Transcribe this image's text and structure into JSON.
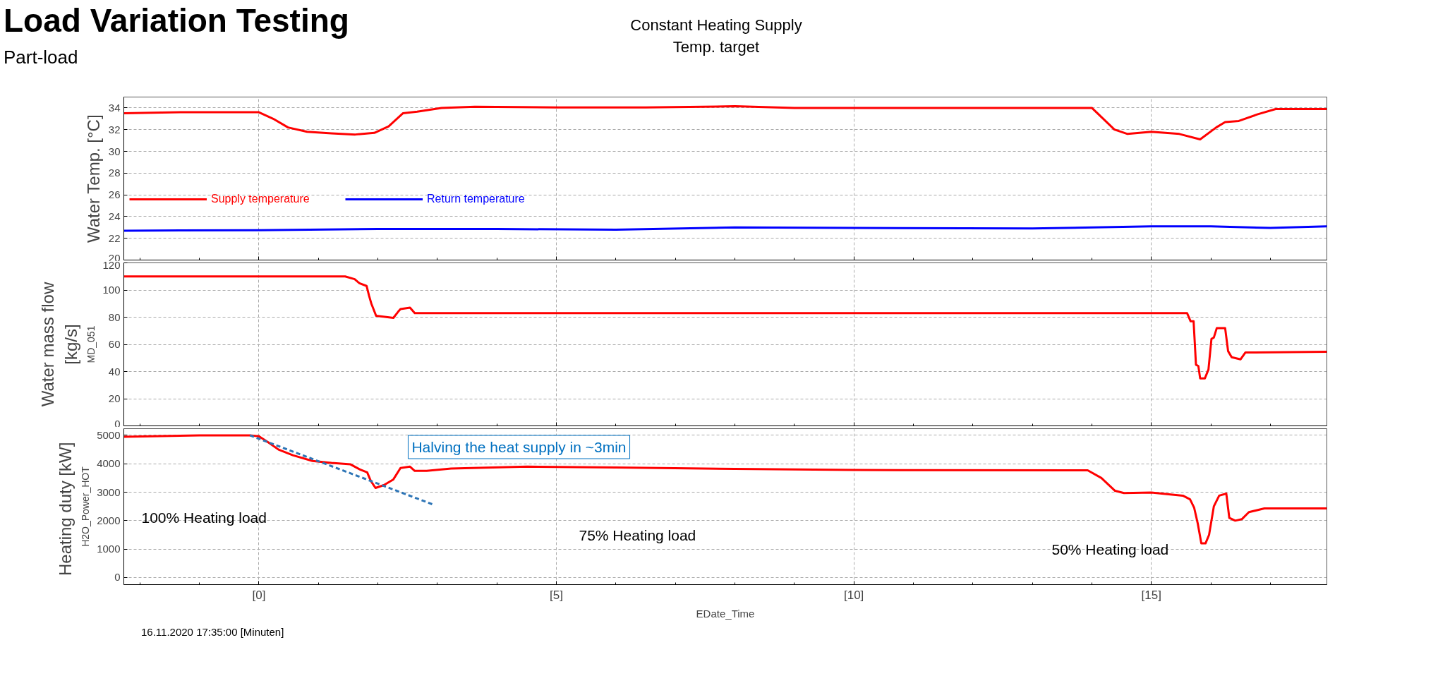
{
  "chart_data": [
    {
      "type": "line",
      "title": "Load Variation Testing",
      "subtitle": "Part-load",
      "ylabel": "Water Temp. [°C]",
      "xlim": [
        -2.27,
        17.95
      ],
      "xticks": [
        {
          "value": 0,
          "label": "[0]"
        },
        {
          "value": 5,
          "label": "[5]"
        },
        {
          "value": 10,
          "label": "[10]"
        },
        {
          "value": 15,
          "label": "[15]"
        }
      ],
      "ylim": [
        20,
        35
      ],
      "yticks": [
        20,
        22,
        24,
        26,
        28,
        30,
        32,
        34
      ],
      "tick_labels": "y",
      "grid": true,
      "legend": "left",
      "annotations": [
        "Constant Heating Supply Temp. target"
      ],
      "series": [
        {
          "name": "Supply temperature",
          "color": "#ff0000",
          "x": [
            -2.27,
            -1.3,
            -1,
            0,
            0.24,
            0.49,
            0.81,
            1.22,
            1.62,
            1.94,
            2.18,
            2.42,
            2.66,
            3.07,
            3.63,
            5,
            6.5,
            8.0,
            9,
            11,
            13,
            14.0,
            14.38,
            14.6,
            15.0,
            15.47,
            15.82,
            16.09,
            16.24,
            16.47,
            16.78,
            17.09,
            17.95
          ],
          "values": [
            33.5,
            33.6,
            33.6,
            33.6,
            33.0,
            32.2,
            31.8,
            31.65,
            31.55,
            31.7,
            32.3,
            33.5,
            33.65,
            34.0,
            34.1,
            34.05,
            34.05,
            34.15,
            34.0,
            34.0,
            34.0,
            34.0,
            32.0,
            31.6,
            31.8,
            31.6,
            31.1,
            32.2,
            32.7,
            32.8,
            33.4,
            33.9,
            33.9
          ]
        },
        {
          "name": "Return temperature",
          "color": "#0000ff",
          "x": [
            -2.27,
            0,
            2,
            4,
            6,
            8,
            10,
            13,
            15,
            16,
            17,
            17.95
          ],
          "values": [
            22.7,
            22.75,
            22.85,
            22.85,
            22.8,
            23.0,
            22.95,
            22.9,
            23.1,
            23.1,
            22.95,
            23.1
          ]
        }
      ]
    },
    {
      "type": "line",
      "ylabel": "Water mass flow [kg/s]",
      "annotations": [
        "MD_051"
      ],
      "xlim": [
        -2.27,
        17.95
      ],
      "xticks": [
        {
          "value": 0,
          "label": "[0]"
        },
        {
          "value": 5,
          "label": "[5]"
        },
        {
          "value": 10,
          "label": "[10]"
        },
        {
          "value": 15,
          "label": "[15]"
        }
      ],
      "ylim": [
        0,
        120
      ],
      "yticks": [
        0,
        20,
        40,
        60,
        80,
        100,
        120
      ],
      "tick_labels": "y",
      "grid": true,
      "series": [
        {
          "color": "#ff0000",
          "x": [
            -2.27,
            0,
            1.45,
            1.61,
            1.69,
            1.81,
            1.85,
            1.89,
            1.97,
            2.26,
            2.34,
            2.38,
            2.54,
            2.62,
            5,
            10,
            15.6,
            15.66,
            15.71,
            15.75,
            15.79,
            15.82,
            15.9,
            15.96,
            16.01,
            16.05,
            16.1,
            16.24,
            16.29,
            16.35,
            16.5,
            16.58,
            17.95
          ],
          "values": [
            110,
            110,
            110,
            108,
            105,
            103,
            96,
            90,
            81,
            79.5,
            84,
            86,
            87,
            83,
            83,
            83,
            83,
            77,
            77,
            45,
            44,
            35,
            35,
            41.5,
            64,
            65,
            72,
            72,
            55,
            50.5,
            49,
            54,
            54.5
          ]
        }
      ]
    },
    {
      "type": "line",
      "ylabel": "Heating  duty [kW]",
      "xlabel": "EDate_Time",
      "xlim": [
        -2.27,
        17.95
      ],
      "xticks": [
        {
          "value": 0,
          "label": "[0]"
        },
        {
          "value": 5,
          "label": "[5]"
        },
        {
          "value": 10,
          "label": "[10]"
        },
        {
          "value": 15,
          "label": "[15]"
        }
      ],
      "ylim": [
        -250,
        5235
      ],
      "yticks": [
        0,
        1000,
        2000,
        3000,
        4000,
        5000
      ],
      "grid": true,
      "annotations": [
        "H2O_Power_HOT",
        "16.11.2020 17:35:00 [Minuten]",
        "100% Heating load",
        "75% Heating load",
        "50% Heating load",
        "Halving the heat supply in ~3min"
      ],
      "series": [
        {
          "color": "#ff0000",
          "x": [
            -2.27,
            -1,
            -0.15,
            0.0,
            0.16,
            0.33,
            0.57,
            0.9,
            1.22,
            1.54,
            1.7,
            1.82,
            1.88,
            1.96,
            2.1,
            2.26,
            2.38,
            2.54,
            2.62,
            2.82,
            3.23,
            4.51,
            6,
            8,
            10,
            13.93,
            14.16,
            14.39,
            14.54,
            15.0,
            15.53,
            15.65,
            15.72,
            15.78,
            15.84,
            15.91,
            15.97,
            16.05,
            16.14,
            16.26,
            16.31,
            16.41,
            16.52,
            16.64,
            16.9,
            17.95
          ],
          "values": [
            4950,
            5000,
            5000,
            4970,
            4750,
            4500,
            4300,
            4100,
            4030,
            3980,
            3800,
            3700,
            3400,
            3150,
            3250,
            3450,
            3850,
            3900,
            3750,
            3750,
            3830,
            3900,
            3870,
            3820,
            3780,
            3770,
            3500,
            3050,
            2970,
            2990,
            2880,
            2750,
            2450,
            1900,
            1200,
            1200,
            1500,
            2500,
            2880,
            2950,
            2100,
            2000,
            2050,
            2300,
            2430,
            2430
          ]
        },
        {
          "type": "line",
          "color": "#2e75b6",
          "line_style": "dashed",
          "x": [
            -0.15,
            2.95
          ],
          "values": [
            5000,
            2550
          ]
        }
      ]
    }
  ]
}
